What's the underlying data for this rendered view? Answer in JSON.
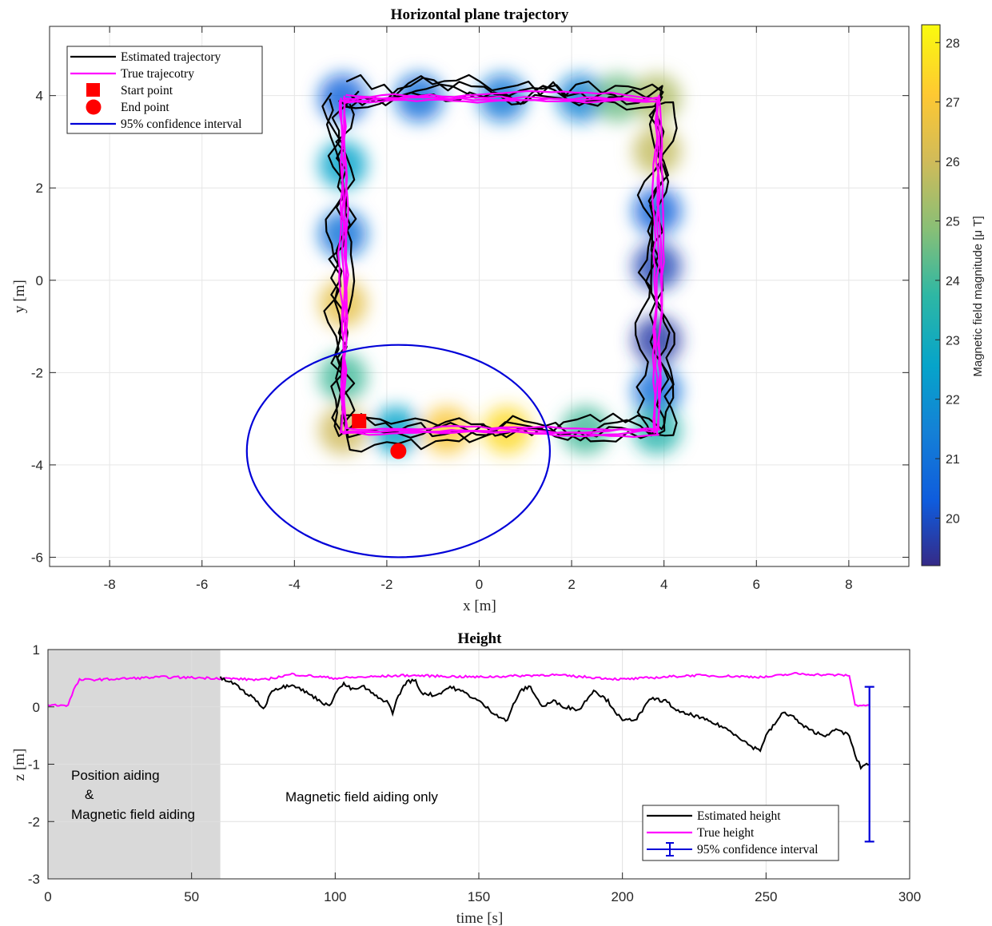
{
  "chart_data": [
    {
      "type": "line",
      "title": "Horizontal plane trajectory",
      "xlabel": "x [m]",
      "ylabel": "y [m]",
      "xlim": [
        -9.3,
        9.3
      ],
      "ylim": [
        -6.2,
        5.5
      ],
      "xticks": [
        -8,
        -6,
        -4,
        -2,
        0,
        2,
        4,
        6,
        8
      ],
      "yticks": [
        -6,
        -4,
        -2,
        0,
        2,
        4
      ],
      "grid": true,
      "legend_position": "top-left",
      "colorbar": {
        "label": "Magnetic field magnitude [μ T]",
        "range": [
          19.2,
          28.3
        ],
        "ticks": [
          20,
          21,
          22,
          23,
          24,
          25,
          26,
          27,
          28
        ],
        "colormap": "parula"
      },
      "square_path": {
        "x": [
          -2.95,
          3.85,
          3.85,
          -2.95,
          -2.95
        ],
        "y": [
          3.95,
          3.95,
          -3.25,
          -3.25,
          3.95
        ],
        "description": "clockwise square, about 4 laps"
      },
      "series": [
        {
          "name": "Estimated trajectory",
          "color": "#000000",
          "kind": "line"
        },
        {
          "name": "True trajecotry",
          "color": "#ff00ff",
          "kind": "line"
        },
        {
          "name": "Start point",
          "color": "#ff0000",
          "kind": "marker-square",
          "x": -2.6,
          "y": -3.05
        },
        {
          "name": "End point",
          "color": "#ff0000",
          "kind": "marker-circle",
          "x": -1.75,
          "y": -3.7
        },
        {
          "name": "95% confidence interval",
          "color": "#0000d8",
          "kind": "ellipse",
          "cx": -1.75,
          "cy": -3.7,
          "rx": 3.28,
          "ry": 2.3
        }
      ],
      "field_heat": [
        {
          "x": -2.95,
          "y": 3.95,
          "v": 20.5
        },
        {
          "x": -1.3,
          "y": 3.95,
          "v": 20.8
        },
        {
          "x": 0.5,
          "y": 3.95,
          "v": 21.2
        },
        {
          "x": 2.2,
          "y": 3.95,
          "v": 21.5
        },
        {
          "x": 3.0,
          "y": 3.95,
          "v": 24.5
        },
        {
          "x": 3.85,
          "y": 3.95,
          "v": 25.5
        },
        {
          "x": 3.85,
          "y": 2.8,
          "v": 25.8
        },
        {
          "x": 3.85,
          "y": 1.5,
          "v": 20.5
        },
        {
          "x": 3.85,
          "y": 0.3,
          "v": 19.8
        },
        {
          "x": 3.85,
          "y": -1.3,
          "v": 19.6
        },
        {
          "x": 3.85,
          "y": -2.4,
          "v": 20.8
        },
        {
          "x": 3.85,
          "y": -3.25,
          "v": 23.5
        },
        {
          "x": 2.3,
          "y": -3.25,
          "v": 24.0
        },
        {
          "x": 0.6,
          "y": -3.25,
          "v": 27.5
        },
        {
          "x": -0.7,
          "y": -3.25,
          "v": 27.0
        },
        {
          "x": -1.8,
          "y": -3.25,
          "v": 22.5
        },
        {
          "x": -2.95,
          "y": -3.25,
          "v": 26.0
        },
        {
          "x": -2.95,
          "y": -2.1,
          "v": 24.0
        },
        {
          "x": -2.95,
          "y": -0.5,
          "v": 26.5
        },
        {
          "x": -2.95,
          "y": 1.0,
          "v": 21.0
        },
        {
          "x": -2.95,
          "y": 2.5,
          "v": 22.5
        }
      ]
    },
    {
      "type": "line",
      "title": "Height",
      "xlabel": "time [s]",
      "ylabel": "z [m]",
      "xlim": [
        0,
        300
      ],
      "ylim": [
        -3,
        1
      ],
      "xticks": [
        0,
        50,
        100,
        150,
        200,
        250,
        300
      ],
      "yticks": [
        -3,
        -2,
        -1,
        0,
        1
      ],
      "grid": true,
      "legend_position": "bottom-right",
      "shaded_region": {
        "x": [
          0,
          60
        ]
      },
      "annotations": [
        {
          "line1": "Position aiding",
          "line2": "&",
          "line3": "Magnetic field aiding"
        },
        {
          "text": "Magnetic field aiding only"
        }
      ],
      "series": [
        {
          "name": "Estimated height",
          "color": "#000000",
          "x": [
            60,
            65,
            70,
            73,
            75,
            78,
            82,
            85,
            90,
            95,
            98,
            100,
            103,
            106,
            110,
            115,
            118,
            120,
            122,
            125,
            128,
            130,
            135,
            140,
            145,
            150,
            155,
            160,
            162,
            165,
            168,
            172,
            176,
            180,
            185,
            190,
            195,
            200,
            205,
            210,
            215,
            220,
            225,
            230,
            235,
            240,
            245,
            248,
            250,
            253,
            256,
            259,
            262,
            265,
            270,
            275,
            279,
            281,
            283,
            285,
            286
          ],
          "y": [
            0.5,
            0.4,
            0.2,
            0.1,
            -0.05,
            0.3,
            0.35,
            0.4,
            0.25,
            0.1,
            0.0,
            0.25,
            0.4,
            0.3,
            0.35,
            0.15,
            0.1,
            -0.1,
            0.2,
            0.45,
            0.45,
            0.25,
            0.2,
            0.35,
            0.25,
            0.1,
            -0.1,
            -0.25,
            0.05,
            0.3,
            0.35,
            0.0,
            0.1,
            0.0,
            -0.05,
            0.3,
            0.1,
            -0.25,
            -0.2,
            0.15,
            0.1,
            -0.1,
            -0.15,
            -0.25,
            -0.35,
            -0.5,
            -0.7,
            -0.75,
            -0.5,
            -0.3,
            -0.1,
            -0.15,
            -0.3,
            -0.4,
            -0.5,
            -0.4,
            -0.5,
            -0.85,
            -1.05,
            -1.0,
            -1.0
          ]
        },
        {
          "name": "True height",
          "color": "#ff00ff",
          "x": [
            0,
            7,
            9,
            11,
            20,
            40,
            60,
            75,
            85,
            100,
            125,
            150,
            175,
            200,
            225,
            250,
            260,
            270,
            279,
            281,
            282,
            286
          ],
          "y": [
            0.03,
            0.03,
            0.3,
            0.47,
            0.48,
            0.52,
            0.5,
            0.47,
            0.57,
            0.5,
            0.55,
            0.52,
            0.56,
            0.48,
            0.55,
            0.52,
            0.58,
            0.56,
            0.55,
            0.03,
            0.03,
            0.03
          ]
        },
        {
          "name": "95% confidence interval",
          "color": "#0000d8",
          "kind": "errorbar",
          "x": 286,
          "center": -1.0,
          "low": -2.35,
          "high": 0.35
        }
      ]
    }
  ]
}
